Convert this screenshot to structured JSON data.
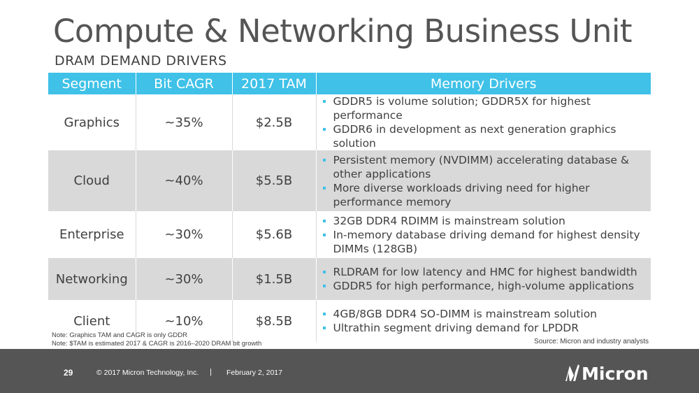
{
  "title": "Compute & Networking Business Unit",
  "subtitle": "DRAM DEMAND DRIVERS",
  "table": {
    "headers": [
      "Segment",
      "Bit CAGR",
      "2017 TAM",
      "Memory Drivers"
    ],
    "rows": [
      {
        "segment": "Graphics",
        "cagr": "~35%",
        "tam": "$2.5B",
        "drivers": [
          "GDDR5 is volume solution; GDDR5X for highest performance",
          "GDDR6 in development as next generation graphics solution"
        ]
      },
      {
        "segment": "Cloud",
        "cagr": "~40%",
        "tam": "$5.5B",
        "drivers": [
          "Persistent memory (NVDIMM) accelerating database & other applications",
          "More diverse workloads driving need for higher performance memory"
        ]
      },
      {
        "segment": "Enterprise",
        "cagr": "~30%",
        "tam": "$5.6B",
        "drivers": [
          "32GB DDR4 RDIMM is mainstream solution",
          "In-memory database driving demand for highest density DIMMs (128GB)"
        ]
      },
      {
        "segment": "Networking",
        "cagr": "~30%",
        "tam": "$1.5B",
        "drivers": [
          "RLDRAM for low latency and HMC for highest bandwidth",
          "GDDR5 for high performance, high-volume applications"
        ]
      },
      {
        "segment": "Client",
        "cagr": "~10%",
        "tam": "$8.5B",
        "drivers": [
          "4GB/8GB DDR4 SO-DIMM is mainstream solution",
          "Ultrathin segment driving demand for LPDDR"
        ]
      }
    ]
  },
  "notes": [
    "Note: Graphics TAM and CAGR is only GDDR",
    "Note: $TAM is estimated 2017 & CAGR is 2016–2020 DRAM bit growth"
  ],
  "source": "Source: Micron and industry analysts",
  "footer": {
    "page_number": "29",
    "copyright": "© 2017 Micron Technology, Inc.",
    "separator": "|",
    "date": "February 2, 2017",
    "logo_text": "Micron"
  },
  "colors": {
    "accent": "#3fc1e8",
    "row_shade": "#d9d9d9",
    "footer_bg": "#555555"
  }
}
